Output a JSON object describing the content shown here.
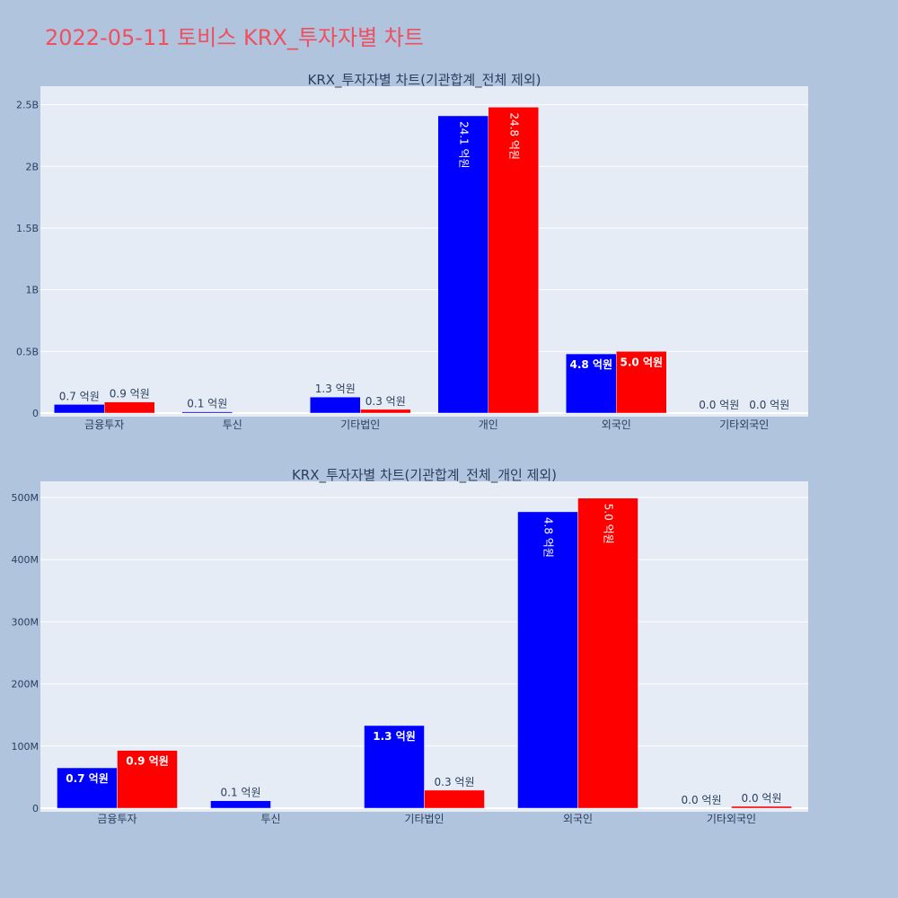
{
  "page": {
    "title": "2022-05-11 토비스 KRX_투자자별 차트"
  },
  "colors": {
    "background": "#b0c4de",
    "plot_bg": "#e5ecf6",
    "title": "#ef4f5f",
    "series_1": "#0000ff",
    "series_2": "#ff0000",
    "text": "#2a3f5f"
  },
  "chart_data": [
    {
      "type": "bar",
      "title": "KRX_투자자별 차트(기관합계_전체 제외)",
      "categories": [
        "금융투자",
        "투신",
        "기타법인",
        "개인",
        "외국인",
        "기타외국인"
      ],
      "series": [
        {
          "values": [
            70000000,
            10000000,
            130000000,
            2410000000,
            480000000,
            0
          ],
          "labels": [
            "0.7 억원",
            "0.1 억원",
            "1.3 억원",
            "24.1 억원",
            "4.8 억원",
            "0.0 억원"
          ]
        },
        {
          "values": [
            90000000,
            0,
            30000000,
            2480000000,
            500000000,
            0
          ],
          "labels": [
            "0.9 억원",
            "",
            "0.3 억원",
            "24.8 억원",
            "5.0 억원",
            "0.0 억원"
          ]
        }
      ],
      "yticks": [
        0,
        500000000,
        1000000000,
        1500000000,
        2000000000,
        2500000000
      ],
      "ytick_labels": [
        "0",
        "0.5B",
        "1B",
        "1.5B",
        "2B",
        "2.5B"
      ],
      "ylim": [
        0,
        2650000000
      ],
      "grid": true
    },
    {
      "type": "bar",
      "title": "KRX_투자자별 차트(기관합계_전체_개인 제외)",
      "categories": [
        "금융투자",
        "투신",
        "기타법인",
        "외국인",
        "기타외국인"
      ],
      "series": [
        {
          "values": [
            65000000,
            12000000,
            133000000,
            477000000,
            0
          ],
          "labels": [
            "0.7 억원",
            "0.1 억원",
            "1.3 억원",
            "4.8 억원",
            "0.0 억원"
          ]
        },
        {
          "values": [
            93000000,
            0,
            29000000,
            499000000,
            3000000
          ],
          "labels": [
            "0.9 억원",
            "",
            "0.3 억원",
            "5.0 억원",
            "0.0 억원"
          ]
        }
      ],
      "yticks": [
        0,
        100000000,
        200000000,
        300000000,
        400000000,
        500000000
      ],
      "ytick_labels": [
        "0",
        "100M",
        "200M",
        "300M",
        "400M",
        "500M"
      ],
      "ylim": [
        0,
        526000000
      ],
      "grid": true
    }
  ]
}
